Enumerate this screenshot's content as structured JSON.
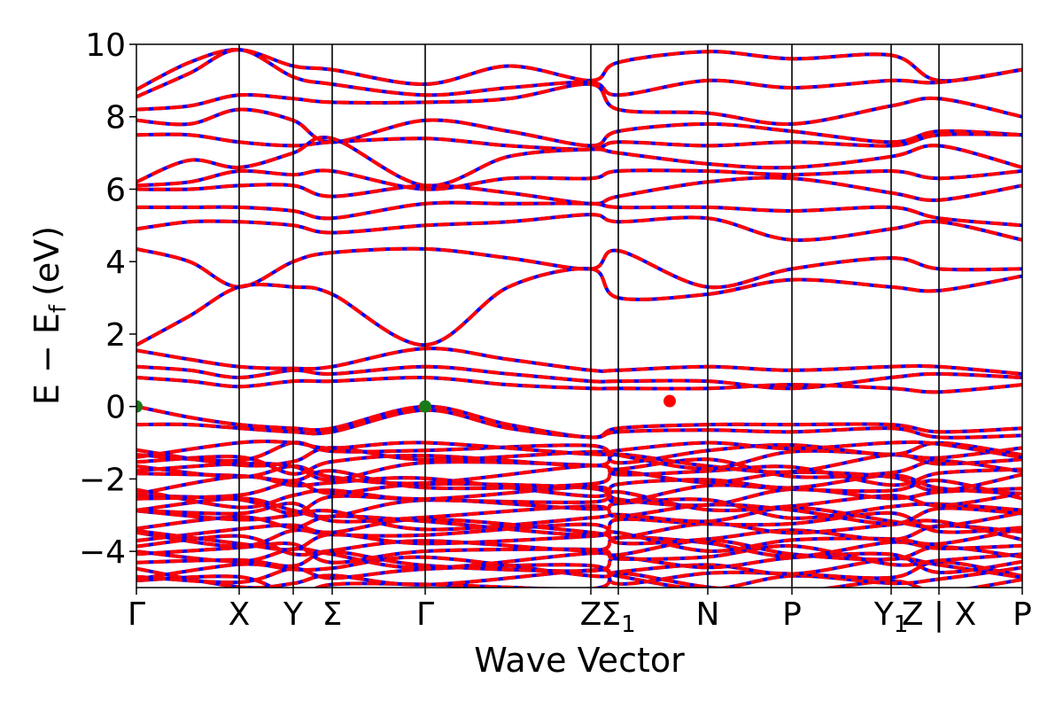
{
  "chart_data": {
    "type": "line",
    "title": "",
    "xlabel": "Wave Vector",
    "ylabel_main": "E − E",
    "ylabel_sub": "f",
    "ylabel_unit": "(eV)",
    "ylim": [
      -5,
      10
    ],
    "y_ticks": [
      -4,
      -2,
      0,
      2,
      4,
      6,
      8,
      10
    ],
    "y_tick_labels": [
      "−4",
      "−2",
      "0",
      "2",
      "4",
      "6",
      "8",
      "10"
    ],
    "xlim": [
      0,
      1
    ],
    "k_points": [
      {
        "label": "Γ",
        "sub": "",
        "x": 0.0
      },
      {
        "label": "X",
        "sub": "",
        "x": 0.116
      },
      {
        "label": "Y",
        "sub": "",
        "x": 0.177
      },
      {
        "label": "Σ",
        "sub": "",
        "x": 0.221
      },
      {
        "label": "Γ",
        "sub": "",
        "x": 0.326
      },
      {
        "label": "Z",
        "sub": "",
        "x": 0.513
      },
      {
        "label": "Σ",
        "sub": "1",
        "x": 0.544
      },
      {
        "label": "N",
        "sub": "",
        "x": 0.645
      },
      {
        "label": "P",
        "sub": "",
        "x": 0.74
      },
      {
        "label": "Y",
        "sub": "1",
        "x": 0.852
      },
      {
        "label": "Z | X",
        "sub": "",
        "x": 0.906
      },
      {
        "label": "P",
        "sub": "",
        "x": 1.0
      }
    ],
    "series": [
      {
        "color": "#0000ff",
        "style": "solid"
      },
      {
        "color": "#ff0000",
        "style": "dashed"
      }
    ],
    "markers": [
      {
        "x": 0.0,
        "y": 0.0,
        "color": "#1a7a1a"
      },
      {
        "x": 0.326,
        "y": 0.0,
        "color": "#1a7a1a"
      },
      {
        "x": 0.602,
        "y": 0.15,
        "color": "#ff0000"
      }
    ],
    "bands": [
      [
        [
          0,
          8.75
        ],
        [
          0.06,
          9.5
        ],
        [
          0.116,
          9.85
        ],
        [
          0.177,
          9.4
        ],
        [
          0.221,
          9.3
        ],
        [
          0.326,
          8.9
        ],
        [
          0.42,
          9.4
        ],
        [
          0.513,
          9.0
        ],
        [
          0.544,
          9.5
        ],
        [
          0.645,
          9.8
        ],
        [
          0.74,
          9.6
        ],
        [
          0.852,
          9.7
        ],
        [
          0.906,
          9.0
        ],
        [
          1,
          9.3
        ]
      ],
      [
        [
          0,
          8.55
        ],
        [
          0.06,
          9.2
        ],
        [
          0.116,
          9.85
        ],
        [
          0.177,
          9.1
        ],
        [
          0.221,
          8.9
        ],
        [
          0.326,
          8.6
        ],
        [
          0.42,
          8.8
        ],
        [
          0.513,
          8.95
        ],
        [
          0.544,
          8.6
        ],
        [
          0.645,
          9.0
        ],
        [
          0.74,
          8.8
        ],
        [
          0.852,
          9.0
        ],
        [
          0.906,
          8.95
        ],
        [
          1,
          9.3
        ]
      ],
      [
        [
          0,
          8.2
        ],
        [
          0.06,
          8.3
        ],
        [
          0.116,
          8.6
        ],
        [
          0.177,
          8.5
        ],
        [
          0.221,
          8.4
        ],
        [
          0.326,
          8.4
        ],
        [
          0.42,
          8.5
        ],
        [
          0.513,
          8.9
        ],
        [
          0.544,
          8.2
        ],
        [
          0.645,
          8.1
        ],
        [
          0.74,
          7.8
        ],
        [
          0.852,
          8.3
        ],
        [
          0.906,
          8.5
        ],
        [
          1,
          8.0
        ]
      ],
      [
        [
          0,
          7.9
        ],
        [
          0.06,
          7.8
        ],
        [
          0.116,
          8.2
        ],
        [
          0.177,
          7.9
        ],
        [
          0.221,
          7.3
        ],
        [
          0.326,
          7.9
        ],
        [
          0.42,
          7.6
        ],
        [
          0.513,
          7.2
        ],
        [
          0.544,
          7.6
        ],
        [
          0.645,
          7.8
        ],
        [
          0.74,
          7.6
        ],
        [
          0.852,
          7.3
        ],
        [
          0.906,
          7.6
        ],
        [
          1,
          7.5
        ]
      ],
      [
        [
          0,
          7.5
        ],
        [
          0.06,
          7.5
        ],
        [
          0.116,
          7.3
        ],
        [
          0.177,
          7.2
        ],
        [
          0.221,
          7.3
        ],
        [
          0.326,
          7.4
        ],
        [
          0.42,
          7.2
        ],
        [
          0.513,
          7.1
        ],
        [
          0.544,
          7.3
        ],
        [
          0.645,
          7.2
        ],
        [
          0.74,
          7.3
        ],
        [
          0.852,
          7.2
        ],
        [
          0.906,
          7.5
        ],
        [
          1,
          7.5
        ]
      ],
      [
        [
          0,
          6.2
        ],
        [
          0.06,
          6.8
        ],
        [
          0.116,
          6.6
        ],
        [
          0.177,
          7.0
        ],
        [
          0.221,
          7.4
        ],
        [
          0.326,
          6.1
        ],
        [
          0.42,
          6.9
        ],
        [
          0.513,
          7.1
        ],
        [
          0.544,
          7.0
        ],
        [
          0.645,
          6.7
        ],
        [
          0.74,
          6.6
        ],
        [
          0.852,
          6.9
        ],
        [
          0.906,
          7.2
        ],
        [
          1,
          6.6
        ]
      ],
      [
        [
          0,
          6.1
        ],
        [
          0.06,
          6.2
        ],
        [
          0.116,
          6.5
        ],
        [
          0.177,
          6.4
        ],
        [
          0.221,
          6.5
        ],
        [
          0.326,
          6.0
        ],
        [
          0.42,
          6.3
        ],
        [
          0.513,
          6.3
        ],
        [
          0.544,
          6.5
        ],
        [
          0.645,
          6.5
        ],
        [
          0.74,
          6.4
        ],
        [
          0.852,
          6.5
        ],
        [
          0.906,
          6.3
        ],
        [
          1,
          6.5
        ]
      ],
      [
        [
          0,
          6.0
        ],
        [
          0.06,
          6.0
        ],
        [
          0.116,
          6.1
        ],
        [
          0.177,
          6.1
        ],
        [
          0.221,
          5.8
        ],
        [
          0.326,
          6.1
        ],
        [
          0.42,
          5.9
        ],
        [
          0.513,
          5.6
        ],
        [
          0.544,
          5.8
        ],
        [
          0.645,
          6.2
        ],
        [
          0.74,
          6.3
        ],
        [
          0.852,
          5.9
        ],
        [
          0.906,
          5.7
        ],
        [
          1,
          6.1
        ]
      ],
      [
        [
          0,
          5.5
        ],
        [
          0.06,
          5.5
        ],
        [
          0.116,
          5.5
        ],
        [
          0.177,
          5.4
        ],
        [
          0.221,
          5.2
        ],
        [
          0.326,
          5.6
        ],
        [
          0.42,
          5.6
        ],
        [
          0.513,
          5.6
        ],
        [
          0.544,
          5.5
        ],
        [
          0.645,
          5.5
        ],
        [
          0.74,
          5.4
        ],
        [
          0.852,
          5.5
        ],
        [
          0.906,
          5.2
        ],
        [
          1,
          5.0
        ]
      ],
      [
        [
          0,
          4.9
        ],
        [
          0.06,
          5.1
        ],
        [
          0.116,
          5.1
        ],
        [
          0.177,
          5.0
        ],
        [
          0.221,
          4.8
        ],
        [
          0.326,
          5.0
        ],
        [
          0.42,
          5.1
        ],
        [
          0.513,
          5.3
        ],
        [
          0.544,
          5.1
        ],
        [
          0.645,
          5.2
        ],
        [
          0.74,
          4.6
        ],
        [
          0.852,
          4.9
        ],
        [
          0.906,
          5.1
        ],
        [
          1,
          4.6
        ]
      ],
      [
        [
          0,
          4.35
        ],
        [
          0.06,
          4.0
        ],
        [
          0.116,
          3.3
        ],
        [
          0.177,
          4.0
        ],
        [
          0.221,
          4.25
        ],
        [
          0.326,
          4.35
        ],
        [
          0.42,
          4.1
        ],
        [
          0.513,
          3.8
        ],
        [
          0.544,
          4.3
        ],
        [
          0.645,
          3.3
        ],
        [
          0.74,
          3.8
        ],
        [
          0.852,
          4.1
        ],
        [
          0.906,
          3.8
        ],
        [
          1,
          3.8
        ]
      ],
      [
        [
          0,
          1.7
        ],
        [
          0.06,
          2.5
        ],
        [
          0.116,
          3.3
        ],
        [
          0.177,
          3.3
        ],
        [
          0.221,
          3.1
        ],
        [
          0.326,
          1.7
        ],
        [
          0.42,
          3.3
        ],
        [
          0.513,
          3.8
        ],
        [
          0.544,
          3.0
        ],
        [
          0.645,
          3.1
        ],
        [
          0.74,
          3.5
        ],
        [
          0.852,
          3.3
        ],
        [
          0.906,
          3.2
        ],
        [
          1,
          3.6
        ]
      ],
      [
        [
          0,
          1.55
        ],
        [
          0.06,
          1.3
        ],
        [
          0.116,
          1.1
        ],
        [
          0.177,
          1.05
        ],
        [
          0.221,
          1.1
        ],
        [
          0.326,
          1.6
        ],
        [
          0.42,
          1.3
        ],
        [
          0.513,
          1.0
        ],
        [
          0.544,
          1.0
        ],
        [
          0.645,
          1.1
        ],
        [
          0.74,
          1.0
        ],
        [
          0.852,
          1.1
        ],
        [
          0.906,
          1.1
        ],
        [
          1,
          0.9
        ]
      ],
      [
        [
          0,
          1.1
        ],
        [
          0.06,
          1.0
        ],
        [
          0.116,
          0.8
        ],
        [
          0.177,
          1.0
        ],
        [
          0.221,
          0.9
        ],
        [
          0.326,
          1.1
        ],
        [
          0.42,
          0.9
        ],
        [
          0.513,
          0.7
        ],
        [
          0.544,
          0.7
        ],
        [
          0.645,
          0.7
        ],
        [
          0.74,
          0.5
        ],
        [
          0.852,
          0.8
        ],
        [
          0.906,
          0.9
        ],
        [
          1,
          0.8
        ]
      ],
      [
        [
          0,
          0.8
        ],
        [
          0.06,
          0.7
        ],
        [
          0.116,
          0.55
        ],
        [
          0.177,
          0.7
        ],
        [
          0.221,
          0.7
        ],
        [
          0.326,
          0.8
        ],
        [
          0.42,
          0.6
        ],
        [
          0.513,
          0.5
        ],
        [
          0.544,
          0.5
        ],
        [
          0.645,
          0.5
        ],
        [
          0.74,
          0.6
        ],
        [
          0.852,
          0.5
        ],
        [
          0.906,
          0.4
        ],
        [
          1,
          0.6
        ]
      ],
      [
        [
          0,
          0.0
        ],
        [
          0.06,
          -0.3
        ],
        [
          0.116,
          -0.5
        ],
        [
          0.177,
          -0.6
        ],
        [
          0.221,
          -0.6
        ],
        [
          0.326,
          0.0
        ],
        [
          0.42,
          -0.5
        ],
        [
          0.513,
          -0.85
        ],
        [
          0.544,
          -0.6
        ],
        [
          0.645,
          -0.5
        ],
        [
          0.74,
          -0.5
        ],
        [
          0.852,
          -0.5
        ],
        [
          0.906,
          -0.7
        ],
        [
          1,
          -0.6
        ]
      ],
      [
        [
          0,
          -0.5
        ],
        [
          0.06,
          -0.5
        ],
        [
          0.116,
          -0.6
        ],
        [
          0.177,
          -0.7
        ],
        [
          0.221,
          -0.7
        ],
        [
          0.326,
          -0.1
        ],
        [
          0.42,
          -0.6
        ],
        [
          0.513,
          -0.85
        ],
        [
          0.544,
          -0.7
        ],
        [
          0.645,
          -0.65
        ],
        [
          0.74,
          -0.7
        ],
        [
          0.852,
          -0.6
        ],
        [
          0.906,
          -0.85
        ],
        [
          1,
          -0.8
        ]
      ]
    ],
    "dense_bands": {
      "count": 26,
      "ymin": -5.0,
      "ymax": -1.0
    }
  }
}
